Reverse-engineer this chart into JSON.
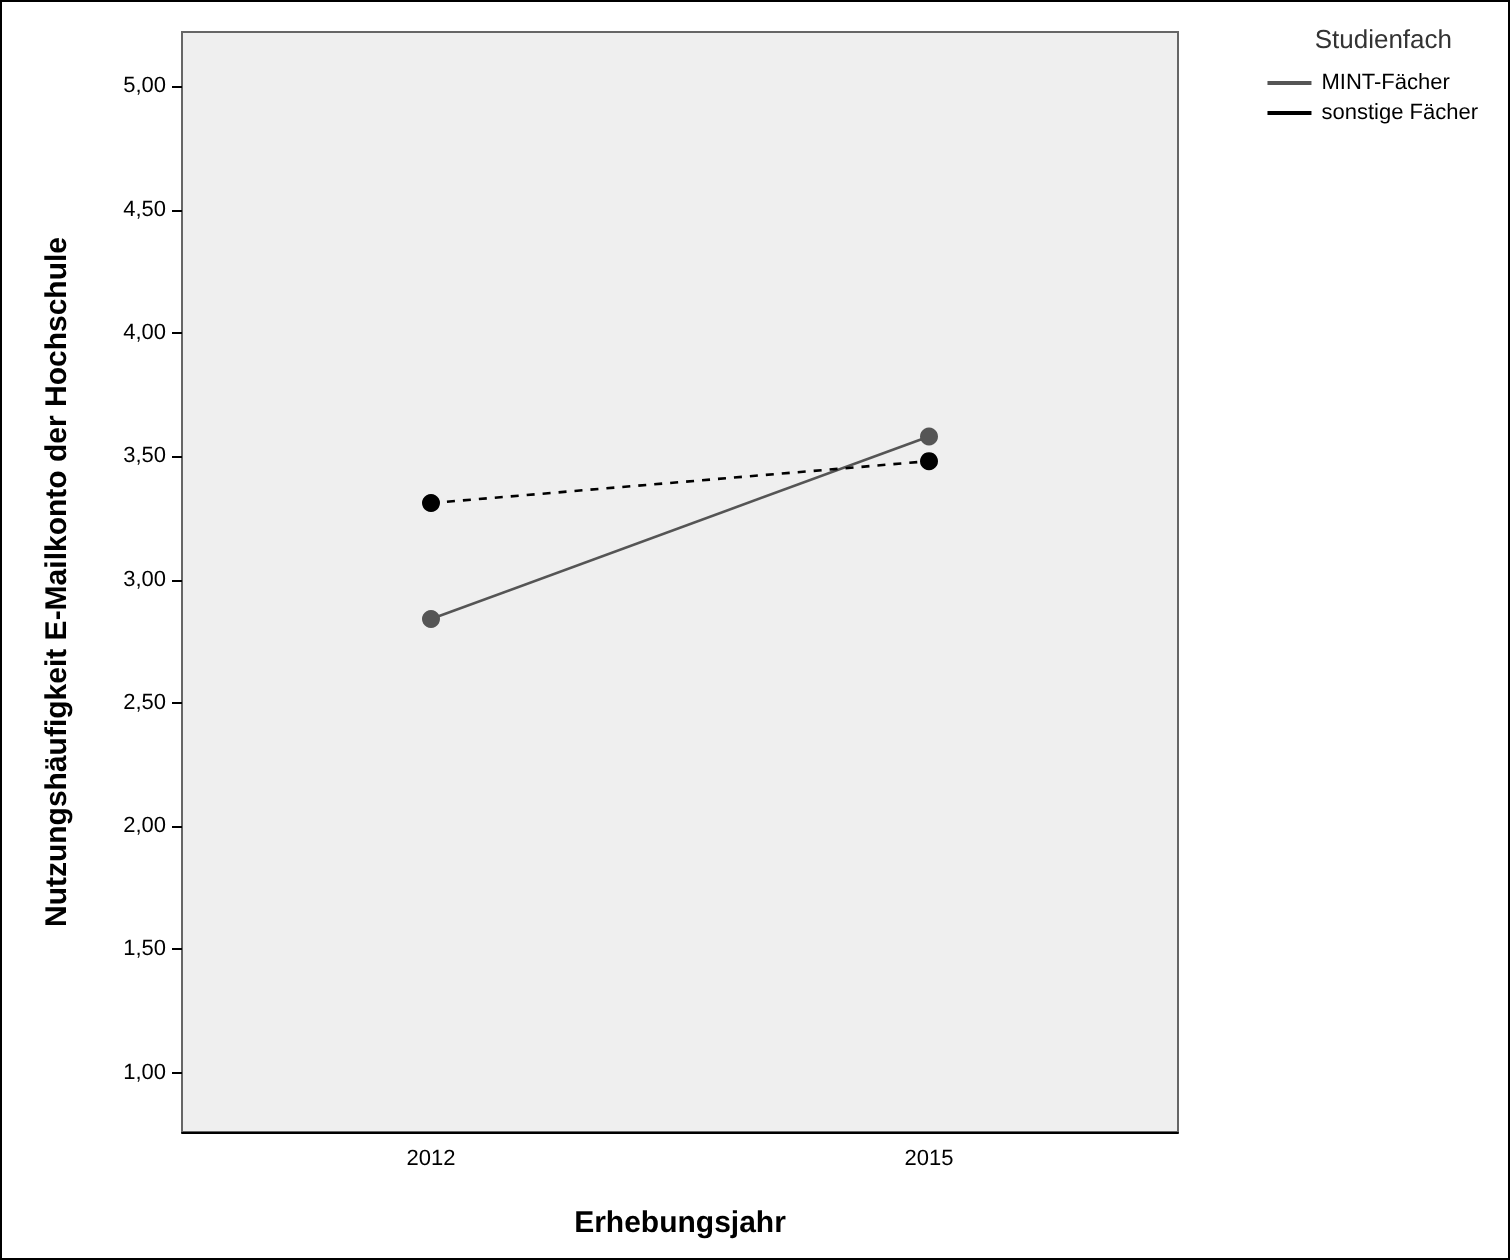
{
  "chart_data": {
    "type": "line",
    "xlabel": "Erhebungsjahr",
    "ylabel": "Nutzungshäufigkeit E-Mailkonto der Hochschule",
    "legend_title": "Studienfach",
    "categories": [
      "2012",
      "2015"
    ],
    "series": [
      {
        "name": "MINT-Fächer",
        "color": "#555555",
        "values": [
          2.84,
          3.58
        ],
        "line_style": "solid"
      },
      {
        "name": "sonstige Fächer",
        "color": "#000000",
        "values": [
          3.31,
          3.48
        ],
        "line_style": "dashed"
      }
    ],
    "ylim": [
      0.76,
      5.22
    ],
    "yticks": [
      {
        "value": 1,
        "label": "1,00"
      },
      {
        "value": 1.5,
        "label": "1,50"
      },
      {
        "value": 2,
        "label": "2,00"
      },
      {
        "value": 2.5,
        "label": "2,50"
      },
      {
        "value": 3,
        "label": "3,00"
      },
      {
        "value": 3.5,
        "label": "3,50"
      },
      {
        "value": 4,
        "label": "4,00"
      },
      {
        "value": 4.5,
        "label": "4,50"
      },
      {
        "value": 5,
        "label": "5,00"
      }
    ],
    "marker": "circle",
    "legend": "top right",
    "grid": false
  }
}
